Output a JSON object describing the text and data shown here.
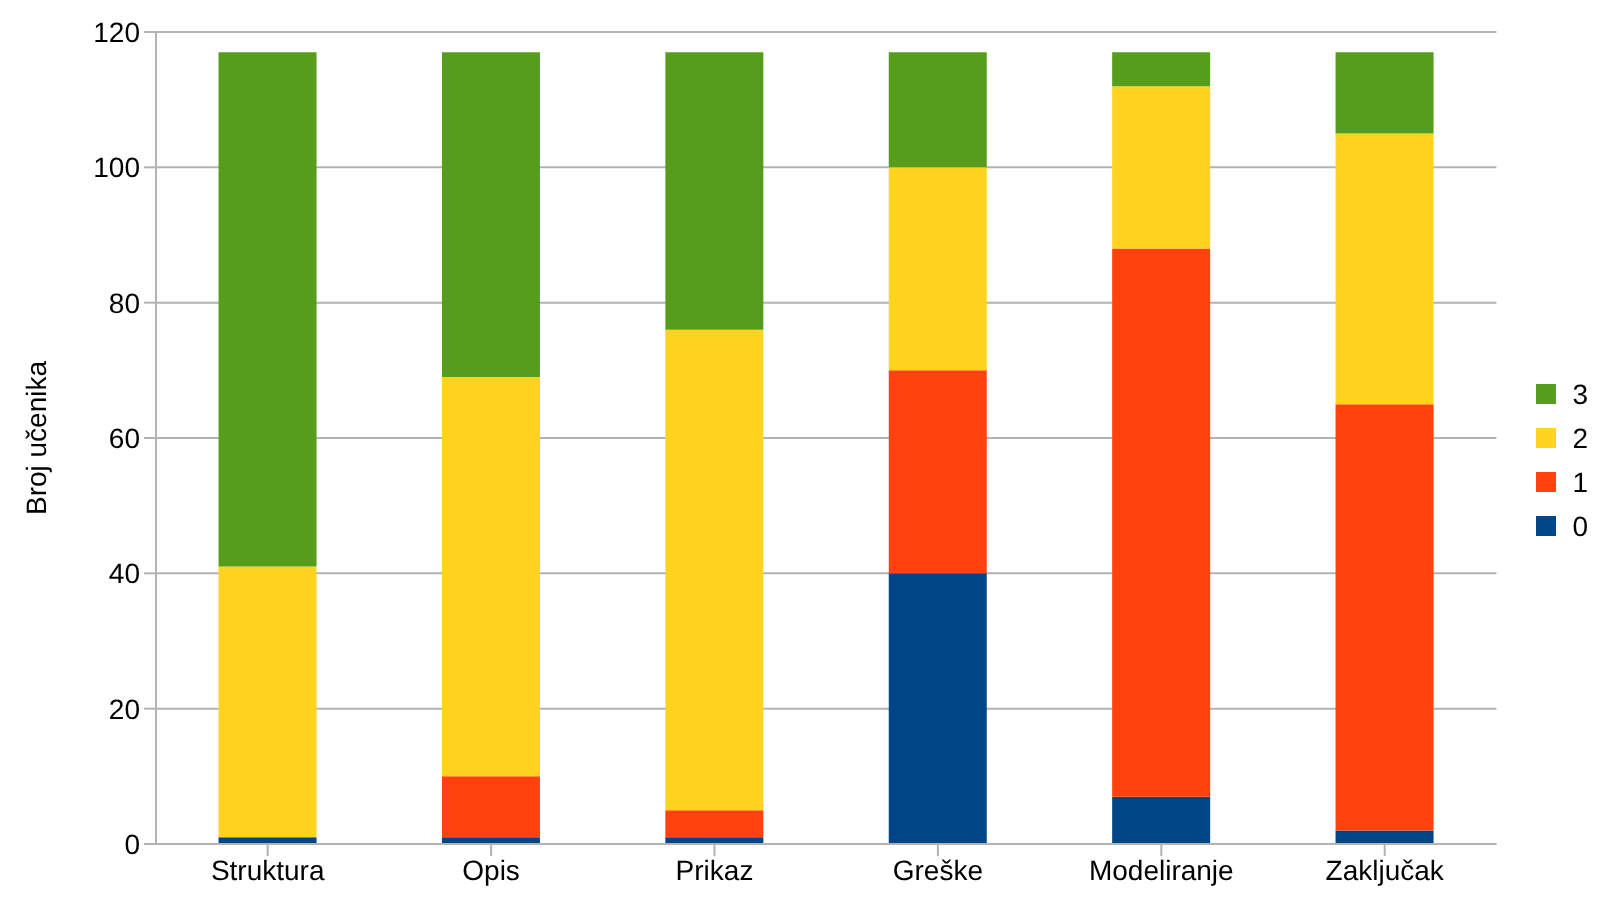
{
  "chart_data": {
    "type": "bar",
    "ylabel": "Broj učenika",
    "stacked": true,
    "categories": [
      "Struktura",
      "Opis",
      "Prikaz",
      "Greške",
      "Modeliranje",
      "Zaključak"
    ],
    "series": [
      {
        "name": "0",
        "color": "#004586",
        "values": [
          1,
          1,
          1,
          40,
          7,
          2
        ]
      },
      {
        "name": "1",
        "color": "#ff420e",
        "values": [
          0,
          9,
          4,
          30,
          81,
          63
        ]
      },
      {
        "name": "2",
        "color": "#ffd320",
        "values": [
          40,
          59,
          71,
          30,
          24,
          40
        ]
      },
      {
        "name": "3",
        "color": "#579d1c",
        "values": [
          76,
          48,
          41,
          17,
          5,
          12
        ]
      }
    ],
    "ylim": [
      0,
      120
    ],
    "yticks": [
      0,
      20,
      40,
      60,
      80,
      100,
      120
    ],
    "grid": "y",
    "legend": "right"
  }
}
